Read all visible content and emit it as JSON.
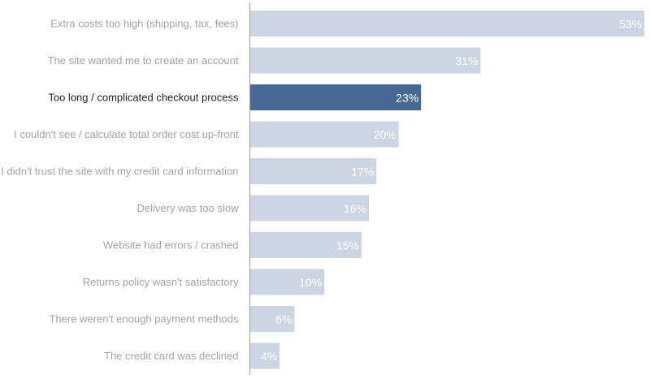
{
  "chart_data": {
    "type": "bar",
    "orientation": "horizontal",
    "categories": [
      "Extra costs too high (shipping, tax, fees)",
      "The site wanted me to create an account",
      "Too long / complicated checkout process",
      "I couldn't see / calculate total order cost up-front",
      "I didn't trust the site with my credit card information",
      "Delivery was too slow",
      "Website had errors / crashed",
      "Returns policy wasn't satisfactory",
      "There weren't enough payment methods",
      "The credit card was declined"
    ],
    "values": [
      53,
      31,
      23,
      20,
      17,
      16,
      15,
      10,
      6,
      4
    ],
    "data_labels": [
      "53%",
      "31%",
      "23%",
      "20%",
      "17%",
      "16%",
      "15%",
      "10%",
      "6%",
      "4%"
    ],
    "unit": "%",
    "highlighted_index": 2,
    "xlim": [
      0,
      53
    ],
    "title": "",
    "xlabel": "",
    "ylabel": "",
    "grid": false,
    "legend": "none",
    "colors": {
      "bar": "#ccd5e2",
      "bar_highlight": "#456895",
      "label": "#a3a3a3",
      "label_highlight": "#222222",
      "value_label": "#ffffff",
      "axis": "#a8a8a8"
    }
  }
}
